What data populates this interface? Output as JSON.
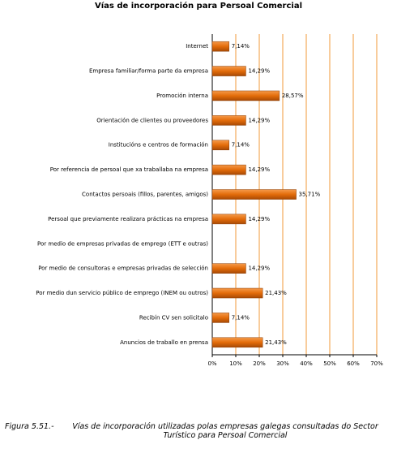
{
  "chart_data": {
    "type": "bar",
    "orientation": "horizontal",
    "title": "Vías de incorporación para Persoal Comercial",
    "categories": [
      "Internet",
      "Empresa familiar/forma parte da empresa",
      "Promoción interna",
      "Orientación de clientes ou proveedores",
      "Institucións e centros de formación",
      "Por referencia de persoal que xa traballaba na empresa",
      "Contactos persoais (fillos, parentes, amigos)",
      "Persoal que previamente realizara prácticas na empresa",
      "Por medio de empresas privadas de emprego (ETT e outras)",
      "Por medio de consultoras e empresas privadas de selección",
      "Por medio dun servicio público de emprego (INEM ou outros)",
      "Recibín CV sen solicitalo",
      "Anuncios de traballo en prensa"
    ],
    "values": [
      7.14,
      14.29,
      28.57,
      14.29,
      7.14,
      14.29,
      35.71,
      14.29,
      null,
      14.29,
      21.43,
      7.14,
      21.43
    ],
    "value_labels": [
      "7,14%",
      "14,29%",
      "28,57%",
      "14,29%",
      "7,14%",
      "14,29%",
      "35,71%",
      "14,29%",
      null,
      "14,29%",
      "21,43%",
      "7,14%",
      "21,43%"
    ],
    "color": "#e36c0a",
    "xlim": [
      0,
      70
    ],
    "xticks": [
      {
        "value": 0,
        "label": "0%"
      },
      {
        "value": 10,
        "label": "10%"
      },
      {
        "value": 20,
        "label": "20%"
      },
      {
        "value": 30,
        "label": "30%"
      },
      {
        "value": 40,
        "label": "40%"
      },
      {
        "value": 50,
        "label": "50%"
      },
      {
        "value": 60,
        "label": "60%"
      },
      {
        "value": 70,
        "label": "70%"
      }
    ],
    "grid": true
  },
  "caption": {
    "label": "Figura 5.51.-",
    "text": "Vías de incorporación utilizadas polas empresas galegas consultadas do Sector Turístico para Persoal Comercial"
  }
}
